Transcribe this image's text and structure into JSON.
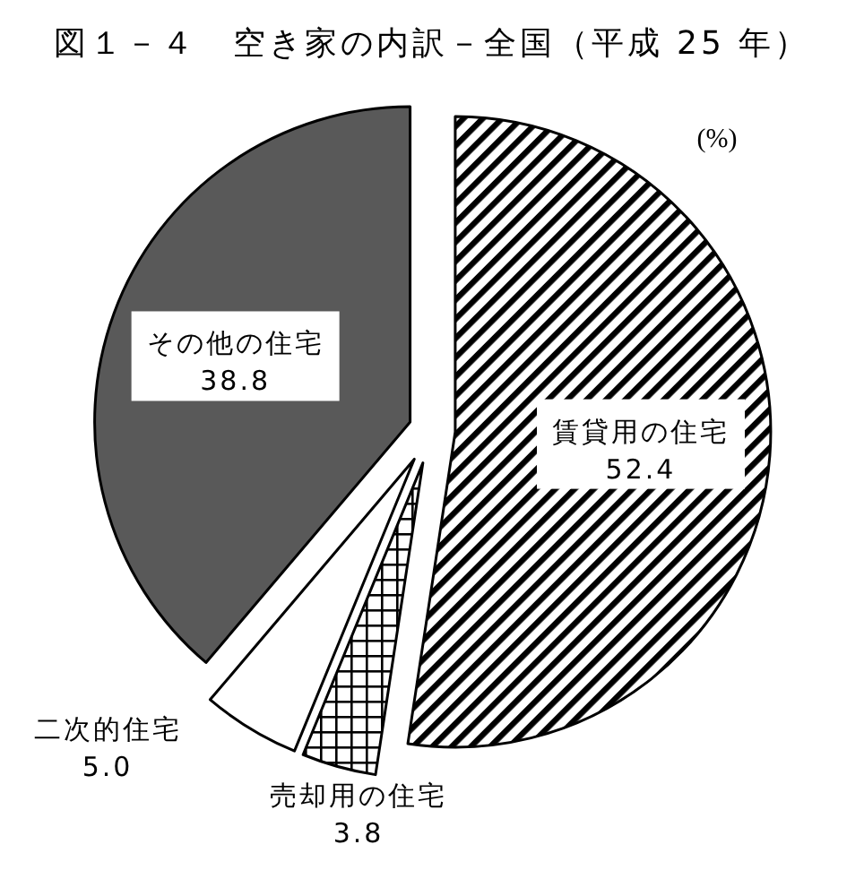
{
  "chart_data": {
    "type": "pie",
    "title": "図１－４　空き家の内訳－全国（平成 25 年）",
    "categories": [
      "賃貸用の住宅",
      "売却用の住宅",
      "二次的住宅",
      "その他の住宅"
    ],
    "values": [
      52.4,
      3.8,
      5.0,
      38.8
    ],
    "colors": [
      "#000000",
      "#000000",
      "#ffffff",
      "#595959"
    ],
    "value_labels": [
      "52.4",
      "3.8",
      "5.0",
      "38.8"
    ],
    "annotations": [
      "(%)"
    ]
  }
}
